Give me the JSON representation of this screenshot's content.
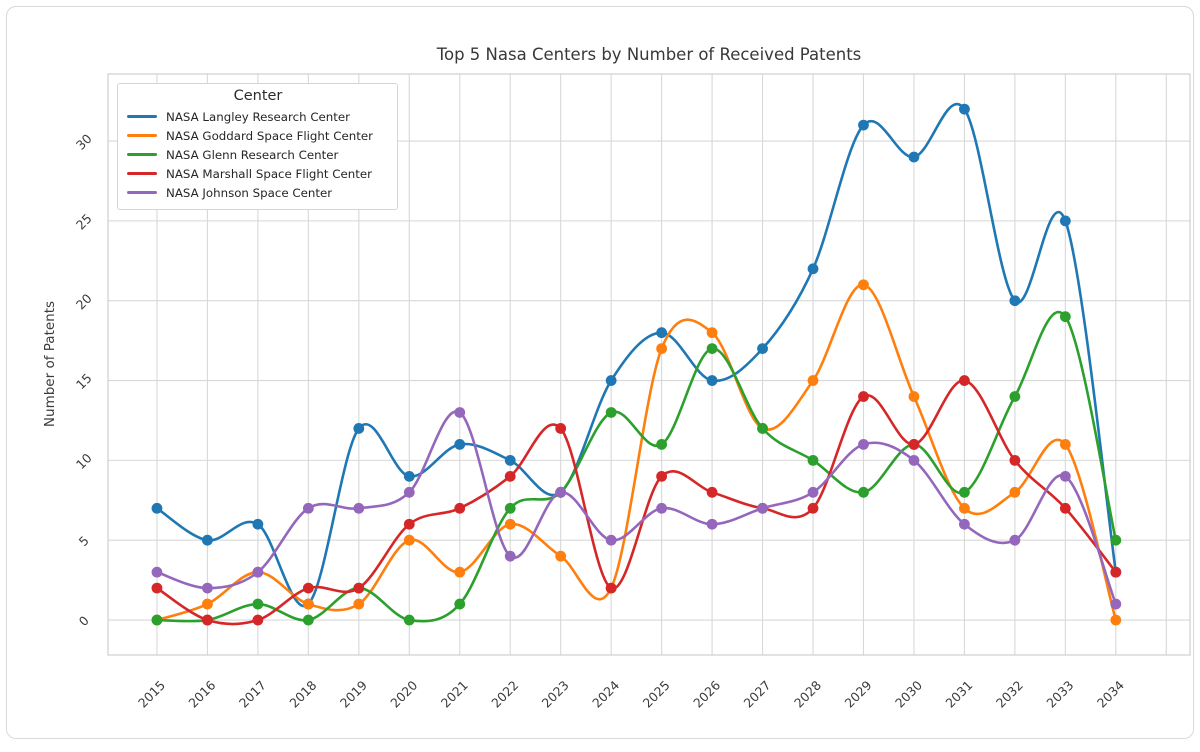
{
  "chart_data": {
    "type": "line",
    "title": "Top 5 Nasa Centers by Number of Received Patents",
    "xlabel": "",
    "ylabel": "Number of Patents",
    "legend_title": "Center",
    "legend_position": "upper left",
    "grid": true,
    "marker": "circle",
    "smooth_curves": true,
    "x": [
      2015,
      2016,
      2017,
      2018,
      2019,
      2020,
      2021,
      2022,
      2023,
      2024,
      2025,
      2026,
      2027,
      2028,
      2029,
      2030,
      2031,
      2032,
      2033,
      2034
    ],
    "x_tick_labels": [
      "2015",
      "2016",
      "2017",
      "2018",
      "2019",
      "2020",
      "2021",
      "2022",
      "2023",
      "2024",
      "2025",
      "2026",
      "2027",
      "2028",
      "2029",
      "2030",
      "2031",
      "2032",
      "2033",
      "2034"
    ],
    "y_ticks": [
      0,
      5,
      10,
      15,
      20,
      25,
      30
    ],
    "ylim": [
      -2.19,
      34.2
    ],
    "xlim": [
      2014.03,
      2035.47
    ],
    "tick_label_rotation_deg": 45,
    "grid_color": "#d8d8d8",
    "spine_color": "#cfcfcf",
    "text_color": "#3b3b3b",
    "series": [
      {
        "name": "NASA Langley Research Center",
        "color": "#1f77b4",
        "values": [
          7,
          5,
          6,
          1,
          12,
          9,
          11,
          10,
          8,
          15,
          18,
          15,
          17,
          22,
          31,
          29,
          32,
          20,
          25,
          3
        ]
      },
      {
        "name": "NASA Goddard Space Flight Center",
        "color": "#ff7f0e",
        "values": [
          0,
          1,
          3,
          1,
          1,
          5,
          3,
          6,
          4,
          2,
          17,
          18,
          12,
          15,
          21,
          14,
          7,
          8,
          11,
          0
        ]
      },
      {
        "name": "NASA Glenn Research Center",
        "color": "#2ca02c",
        "values": [
          0,
          0,
          1,
          0,
          2,
          0,
          1,
          7,
          8,
          13,
          11,
          17,
          12,
          10,
          8,
          11,
          8,
          14,
          19,
          5
        ]
      },
      {
        "name": "NASA Marshall Space Flight Center",
        "color": "#d62728",
        "values": [
          2,
          0,
          0,
          2,
          2,
          6,
          7,
          9,
          12,
          2,
          9,
          8,
          7,
          7,
          14,
          11,
          15,
          10,
          7,
          3
        ]
      },
      {
        "name": "NASA Johnson Space Center",
        "color": "#9467bd",
        "values": [
          3,
          2,
          3,
          7,
          7,
          8,
          13,
          4,
          8,
          5,
          7,
          6,
          7,
          8,
          11,
          10,
          6,
          5,
          9,
          1
        ]
      }
    ]
  }
}
